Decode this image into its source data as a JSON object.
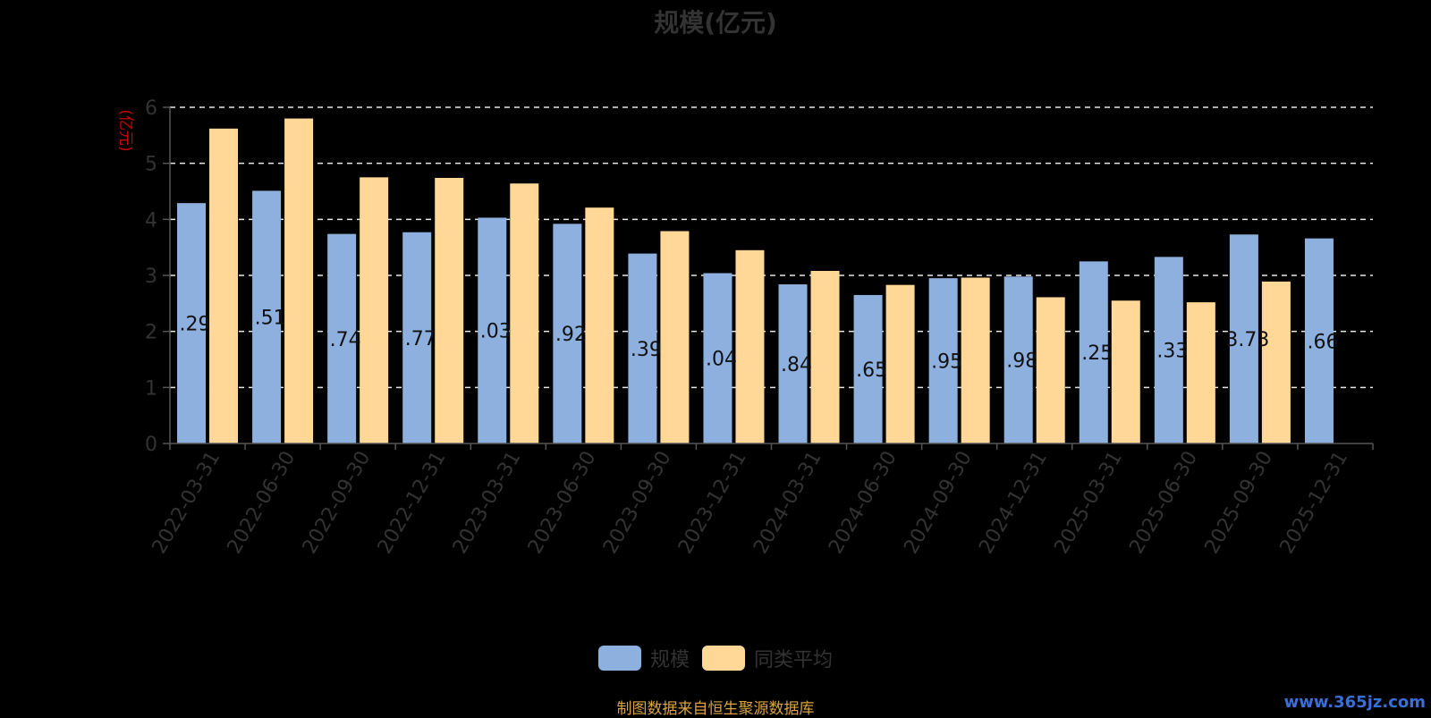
{
  "title": "规模(亿元)",
  "source_note": "制图数据来自恒生聚源数据库",
  "watermark": "www.365jz.com",
  "colors": {
    "series_size": "#8eb0de",
    "series_avg": "#ffd897",
    "axis_label": "#cc0000",
    "tick": "#333333"
  },
  "chart_data": {
    "type": "bar",
    "title": "规模(亿元)",
    "xlabel": "",
    "ylabel": "(亿元)",
    "ylim": [
      0,
      6
    ],
    "yticks": [
      0,
      1,
      2,
      3,
      4,
      5,
      6
    ],
    "grid": true,
    "legend_position": "bottom",
    "categories": [
      "2022-03-31",
      "2022-06-30",
      "2022-09-30",
      "2022-12-31",
      "2023-03-31",
      "2023-06-30",
      "2023-09-30",
      "2023-12-31",
      "2024-03-31",
      "2024-06-30",
      "2024-09-30",
      "2024-12-31",
      "2025-03-31",
      "2025-06-30",
      "2025-09-30",
      "2025-12-31"
    ],
    "series": [
      {
        "name": "规模",
        "values": [
          4.29,
          4.51,
          3.74,
          3.77,
          4.03,
          3.92,
          3.39,
          3.04,
          2.84,
          2.65,
          2.95,
          2.98,
          3.25,
          3.33,
          3.73,
          3.66
        ],
        "data_labels": [
          ".29",
          ".51",
          ".74",
          ".77",
          ".03",
          ".92",
          ".39",
          ".04",
          ".84",
          ".65",
          ".95",
          ".98",
          ".25",
          ".33",
          "3.73",
          ".66"
        ]
      },
      {
        "name": "同类平均",
        "values": [
          5.62,
          5.8,
          4.75,
          4.74,
          4.64,
          4.21,
          3.79,
          3.45,
          3.08,
          2.83,
          2.96,
          2.61,
          2.55,
          2.52,
          2.89,
          null
        ]
      }
    ]
  }
}
